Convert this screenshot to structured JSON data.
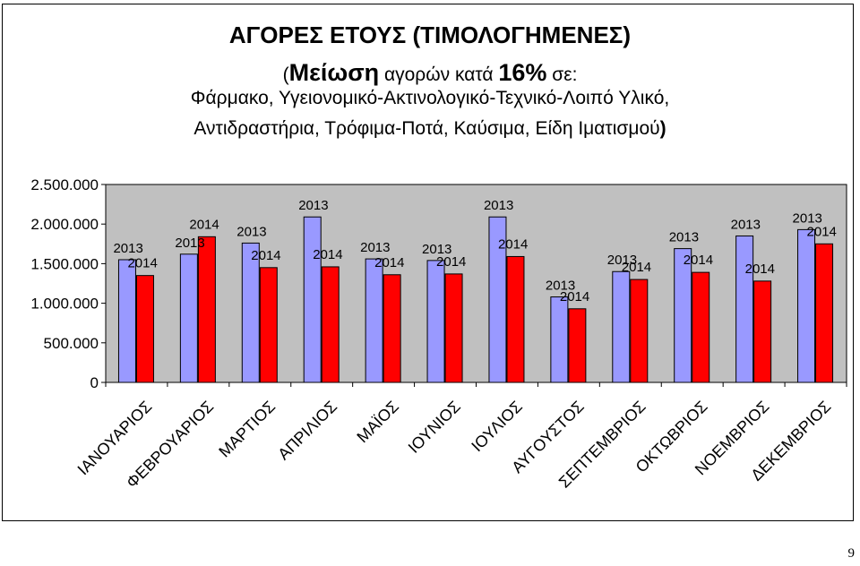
{
  "header": {
    "title": "ΑΓΟΡΕΣ ΕΤΟΥΣ (ΤΙΜΟΛΟΓΗΜΕΝΕΣ)",
    "line2_open": "(",
    "line2_bold": "Μείωση",
    "line2_mid": " αγορών κατά ",
    "line2_pct": "16%",
    "line2_end": " σε:",
    "line3": "Φάρμακο, Υγειονομικό-Ακτινολογικό-Τεχνικό-Λοιπό Υλικό,",
    "line4_text": "Αντιδραστήρια, Τρόφιμα-Ποτά, Καύσιμα, Είδη Ιματισμού",
    "line4_close": ")"
  },
  "page_number": "9",
  "chart_data": {
    "type": "bar",
    "categories": [
      "ΙΑΝΟΥΑΡΙΟΣ",
      "ΦΕΒΡΟΥΑΡΙΟΣ",
      "ΜΑΡΤΙΟΣ",
      "ΑΠΡΙΛΙΟΣ",
      "ΜΑΪΟΣ",
      "ΙΟΥΝΙΟΣ",
      "ΙΟΥΛΙΟΣ",
      "ΑΥΓΟΥΣΤΟΣ",
      "ΣΕΠΤΕΜΒΡΙΟΣ",
      "ΟΚΤΩΒΡΙΟΣ",
      "ΝΟΕΜΒΡΙΟΣ",
      "ΔΕΚΕΜΒΡΙΟΣ"
    ],
    "series": [
      {
        "name": "2013",
        "color": "#9999ff",
        "values": [
          1550000,
          1620000,
          1760000,
          2090000,
          1560000,
          1540000,
          2090000,
          1080000,
          1400000,
          1690000,
          1850000,
          1930000
        ]
      },
      {
        "name": "2014",
        "color": "#ff0000",
        "values": [
          1350000,
          1840000,
          1450000,
          1460000,
          1360000,
          1370000,
          1590000,
          930000,
          1300000,
          1390000,
          1280000,
          1750000
        ]
      }
    ],
    "y_ticks": [
      "0",
      "500.000",
      "1.000.000",
      "1.500.000",
      "2.000.000",
      "2.500.000"
    ],
    "y_tick_values": [
      0,
      500000,
      1000000,
      1500000,
      2000000,
      2500000
    ],
    "ylim": [
      0,
      2500000
    ],
    "grid": false,
    "plot_background": "#c0c0c0",
    "legend": "none"
  }
}
